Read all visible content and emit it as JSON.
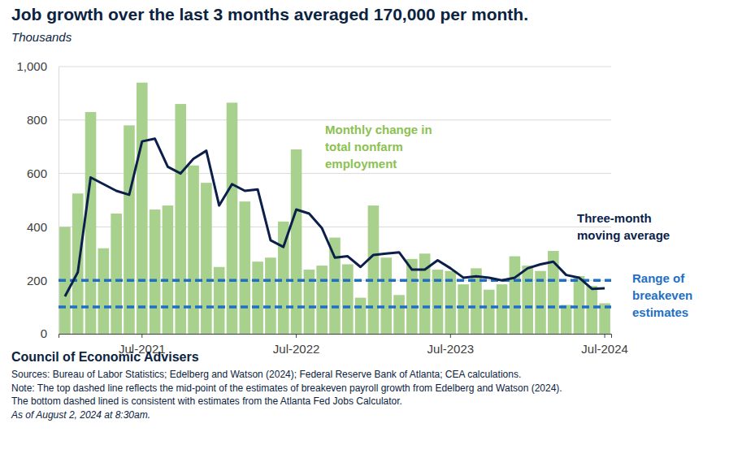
{
  "chart_data": {
    "type": "bar",
    "title": "Job growth over the last 3 months averaged 170,000 per month.",
    "subtitle": "Thousands",
    "categories": [
      null,
      null,
      null,
      null,
      null,
      null,
      "Jul-2021",
      null,
      null,
      null,
      null,
      null,
      null,
      null,
      null,
      null,
      null,
      null,
      "Jul-2022",
      null,
      null,
      null,
      null,
      null,
      null,
      null,
      null,
      null,
      null,
      null,
      "Jul-2023",
      null,
      null,
      null,
      null,
      null,
      null,
      null,
      null,
      null,
      null,
      null,
      "Jul-2024"
    ],
    "series": [
      {
        "name": "Monthly change in total nonfarm employment",
        "type": "bar",
        "color": "#a9d18e",
        "label_color": "#8cc152",
        "values": [
          400,
          525,
          830,
          320,
          450,
          780,
          940,
          465,
          480,
          860,
          630,
          565,
          250,
          865,
          495,
          270,
          285,
          420,
          690,
          240,
          255,
          360,
          260,
          135,
          480,
          285,
          145,
          280,
          300,
          240,
          235,
          185,
          245,
          165,
          185,
          290,
          255,
          235,
          310,
          108,
          216,
          179,
          114
        ]
      },
      {
        "name": "Three-month moving average",
        "type": "line",
        "color": "#0b1f4a",
        "label_color": "#0b1f4a",
        "values": [
          140,
          230,
          585,
          560,
          535,
          520,
          720,
          730,
          625,
          600,
          655,
          685,
          480,
          560,
          535,
          540,
          350,
          325,
          465,
          450,
          395,
          285,
          290,
          250,
          295,
          300,
          305,
          240,
          240,
          275,
          245,
          210,
          215,
          210,
          200,
          210,
          245,
          260,
          270,
          220,
          210,
          168,
          170
        ]
      }
    ],
    "reference_lines": {
      "label": "Range of breakeven estimates",
      "values": [
        200,
        100
      ],
      "color": "#1f6fc5",
      "line_style": "dashed"
    },
    "ylim": [
      0,
      1000
    ],
    "yticks": [
      0,
      200,
      400,
      600,
      800,
      {
        "value": 1000,
        "label": "1,000"
      }
    ],
    "grid": true,
    "footer": {
      "org": "Council of Economic Advisers",
      "sources": "Sources: Bureau of Labor Statistics; Edelberg and Watson (2024); Federal Reserve Bank of Atlanta; CEA calculations.",
      "note": [
        "Note: The top dashed line reflects the mid-point of the estimates of breakeven payroll growth from Edelberg and Watson (2024).",
        "The bottom dashed lined is consistent with estimates from the Atlanta Fed Jobs Calculator."
      ],
      "date": "As of August 2, 2024 at 8:30am."
    }
  }
}
